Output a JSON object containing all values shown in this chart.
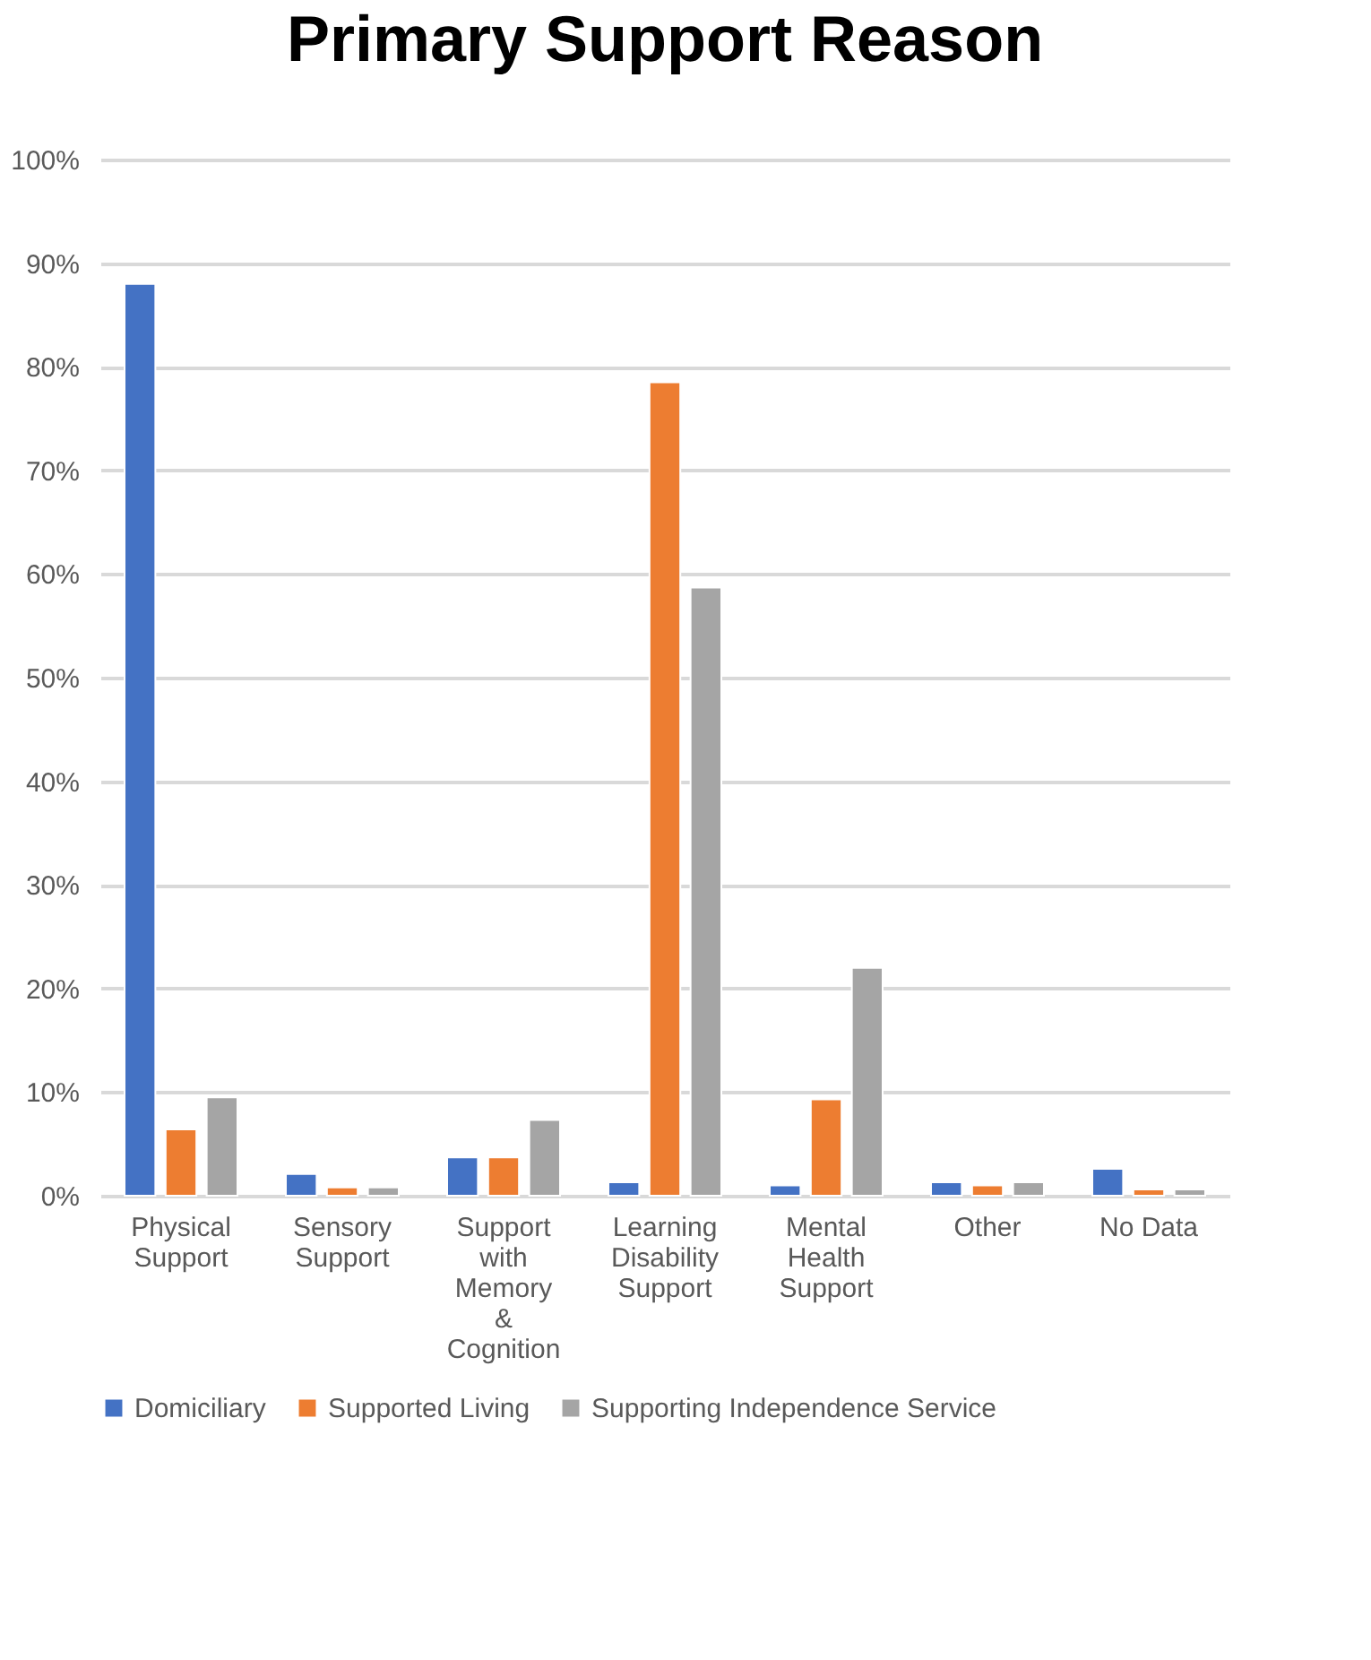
{
  "chart_data": {
    "type": "bar",
    "title": "Primary Support Reason",
    "categories": [
      "Physical Support",
      "Sensory Support",
      "Support with Memory & Cognition",
      "Learning Disability Support",
      "Mental Health Support",
      "Other",
      "No Data"
    ],
    "series": [
      {
        "name": "Domiciliary",
        "color": "#4472c4",
        "values": [
          88.0,
          2.1,
          3.7,
          1.3,
          1.0,
          1.3,
          2.6
        ]
      },
      {
        "name": "Supported Living",
        "color": "#ed7d31",
        "values": [
          6.4,
          0.8,
          3.7,
          78.5,
          9.3,
          1.0,
          0.6
        ]
      },
      {
        "name": "Supporting Independence Service",
        "color": "#a5a5a5",
        "values": [
          9.5,
          0.8,
          7.3,
          58.7,
          22.0,
          1.3,
          0.6
        ]
      }
    ],
    "ylim": [
      0,
      100
    ],
    "yticks": [
      {
        "value": 0,
        "label": "0%"
      },
      {
        "value": 10,
        "label": "10%"
      },
      {
        "value": 20,
        "label": "20%"
      },
      {
        "value": 30,
        "label": "30%"
      },
      {
        "value": 40,
        "label": "40%"
      },
      {
        "value": 50,
        "label": "50%"
      },
      {
        "value": 60,
        "label": "60%"
      },
      {
        "value": 70,
        "label": "70%"
      },
      {
        "value": 80,
        "label": "80%"
      },
      {
        "value": 90,
        "label": "90%"
      },
      {
        "value": 100,
        "label": "100%"
      }
    ],
    "grid": "y",
    "legend": "bottom"
  }
}
